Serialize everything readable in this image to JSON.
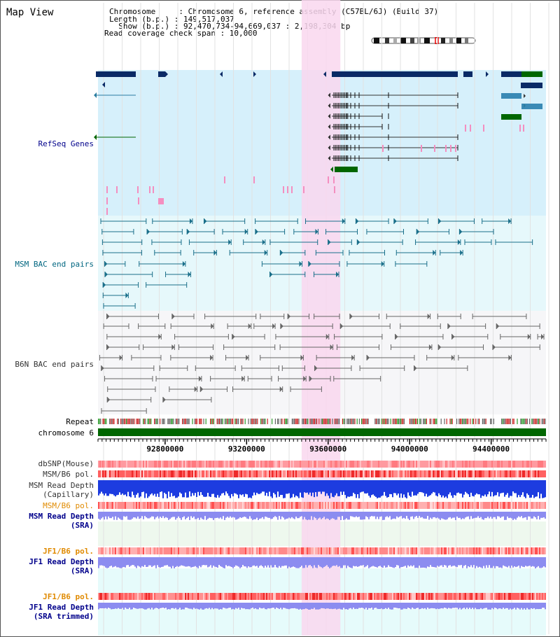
{
  "view": {
    "title": "Map View",
    "chromosome_line": "Chromosome     : Chromosome 6, reference assembly (C57BL/6J) (Build 37)",
    "length_line": "Length (b.p.) : 149,517,037",
    "show_line": "  Show (b.p.) : 92,470,734-94,669,037 : 2,198,304 bp",
    "coverage_line": "Read coverage check span : 10,000"
  },
  "range": {
    "start": 92470734,
    "end": 94669037,
    "highlight": [
      93470000,
      93660000
    ]
  },
  "axis": {
    "ticks": [
      92800000,
      93200000,
      93600000,
      94000000,
      94400000
    ],
    "tick_labels": [
      "92800000",
      "93200000",
      "93600000",
      "94000000",
      "94400000"
    ]
  },
  "tracks": {
    "refseq": "RefSeq Genes",
    "msm_bac": "MSM BAC end pairs",
    "b6n_bac": "B6N BAC end pairs",
    "repeat": "Repeat",
    "chromosome": "chromosome 6",
    "dbsnp": "dbSNP(Mouse)",
    "msm_pol_1": "MSM/B6 pol.",
    "msm_depth_cap_1": "MSM Read Depth",
    "msm_depth_cap_2": "(Capillary)",
    "msm_pol_2": "MSM/B6 pol.",
    "msm_depth_sra_1": "MSM Read Depth",
    "msm_depth_sra_2": "(SRA)",
    "jf1_pol_1": "JF1/B6 pol.",
    "jf1_depth_sra_1": "JF1 Read Depth",
    "jf1_depth_sra_2": "(SRA)",
    "jf1_pol_2": "JF1/B6 pol.",
    "jf1_depth_trim_1": "JF1 Read Depth",
    "jf1_depth_trim_2": "(SRA trimmed)"
  },
  "colors": {
    "refseq_bg": "#d6f0fb",
    "msm_bac_bg": "#e6f8fb",
    "b6n_bac_bg": "#f6f6f8",
    "highlight": "#f9d7ef",
    "gene_dark": "#0a2a66",
    "gene_line": "#2a7da0",
    "gene_green": "#006600",
    "msm_bac": "#1a6f8a",
    "b6n_bac": "#666666",
    "label_dark": "#000000",
    "label_blue": "#00008b",
    "label_teal": "#006680",
    "label_orange": "#e08a00",
    "chromosome_bar": "#006600",
    "depth_capillary": "#1d3ce0",
    "depth_sra": "#8c8cf0"
  }
}
